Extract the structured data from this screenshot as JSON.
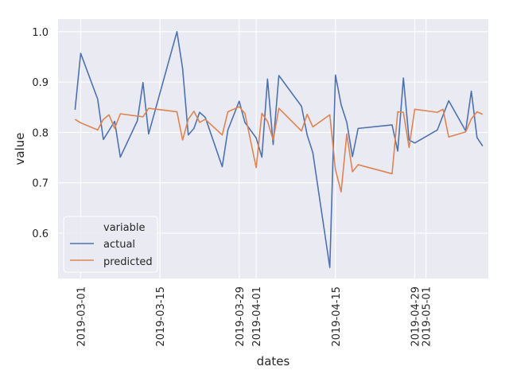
{
  "chart_data": {
    "type": "line",
    "xlabel": "dates",
    "ylabel": "value",
    "xlim": [
      "2019-02-25",
      "2019-05-12"
    ],
    "ylim": [
      0.51,
      1.025
    ],
    "grid": true,
    "x_ticks": [
      "2019-03-01",
      "2019-03-15",
      "2019-03-29",
      "2019-04-01",
      "2019-04-15",
      "2019-04-29",
      "2019-05-01"
    ],
    "y_ticks": [
      "0.6",
      "0.7",
      "0.8",
      "0.9",
      "1.0"
    ],
    "legend": {
      "title": "variable",
      "placement": "lower-left"
    },
    "series": [
      {
        "name": "actual",
        "color": "#4c72b0",
        "points": [
          [
            "2019-02-28",
            0.845
          ],
          [
            "2019-03-01",
            0.957
          ],
          [
            "2019-03-04",
            0.866
          ],
          [
            "2019-03-05",
            0.786
          ],
          [
            "2019-03-07",
            0.822
          ],
          [
            "2019-03-08",
            0.751
          ],
          [
            "2019-03-11",
            0.823
          ],
          [
            "2019-03-12",
            0.899
          ],
          [
            "2019-03-13",
            0.797
          ],
          [
            "2019-03-18",
            1.0
          ],
          [
            "2019-03-19",
            0.927
          ],
          [
            "2019-03-20",
            0.795
          ],
          [
            "2019-03-21",
            0.808
          ],
          [
            "2019-03-22",
            0.84
          ],
          [
            "2019-03-23",
            0.83
          ],
          [
            "2019-03-26",
            0.732
          ],
          [
            "2019-03-27",
            0.805
          ],
          [
            "2019-03-29",
            0.862
          ],
          [
            "2019-03-30",
            0.82
          ],
          [
            "2019-04-01",
            0.789
          ],
          [
            "2019-04-02",
            0.751
          ],
          [
            "2019-04-03",
            0.906
          ],
          [
            "2019-04-04",
            0.776
          ],
          [
            "2019-04-05",
            0.913
          ],
          [
            "2019-04-09",
            0.852
          ],
          [
            "2019-04-10",
            0.795
          ],
          [
            "2019-04-11",
            0.76
          ],
          [
            "2019-04-14",
            0.532
          ],
          [
            "2019-04-15",
            0.914
          ],
          [
            "2019-04-16",
            0.855
          ],
          [
            "2019-04-17",
            0.82
          ],
          [
            "2019-04-18",
            0.752
          ],
          [
            "2019-04-19",
            0.808
          ],
          [
            "2019-04-25",
            0.815
          ],
          [
            "2019-04-26",
            0.763
          ],
          [
            "2019-04-27",
            0.908
          ],
          [
            "2019-04-28",
            0.785
          ],
          [
            "2019-04-29",
            0.779
          ],
          [
            "2019-05-03",
            0.805
          ],
          [
            "2019-05-05",
            0.863
          ],
          [
            "2019-05-08",
            0.803
          ],
          [
            "2019-05-09",
            0.882
          ],
          [
            "2019-05-10",
            0.79
          ],
          [
            "2019-05-11",
            0.773
          ]
        ]
      },
      {
        "name": "predicted",
        "color": "#dd8452",
        "points": [
          [
            "2019-02-28",
            0.826
          ],
          [
            "2019-03-01",
            0.819
          ],
          [
            "2019-03-04",
            0.805
          ],
          [
            "2019-03-05",
            0.826
          ],
          [
            "2019-03-06",
            0.835
          ],
          [
            "2019-03-07",
            0.808
          ],
          [
            "2019-03-08",
            0.837
          ],
          [
            "2019-03-12",
            0.831
          ],
          [
            "2019-03-13",
            0.848
          ],
          [
            "2019-03-18",
            0.841
          ],
          [
            "2019-03-19",
            0.785
          ],
          [
            "2019-03-20",
            0.826
          ],
          [
            "2019-03-21",
            0.842
          ],
          [
            "2019-03-22",
            0.82
          ],
          [
            "2019-03-23",
            0.826
          ],
          [
            "2019-03-26",
            0.795
          ],
          [
            "2019-03-27",
            0.841
          ],
          [
            "2019-03-29",
            0.851
          ],
          [
            "2019-03-30",
            0.838
          ],
          [
            "2019-04-01",
            0.73
          ],
          [
            "2019-04-02",
            0.838
          ],
          [
            "2019-04-03",
            0.822
          ],
          [
            "2019-04-04",
            0.785
          ],
          [
            "2019-04-05",
            0.848
          ],
          [
            "2019-04-09",
            0.803
          ],
          [
            "2019-04-10",
            0.836
          ],
          [
            "2019-04-11",
            0.811
          ],
          [
            "2019-04-14",
            0.835
          ],
          [
            "2019-04-15",
            0.726
          ],
          [
            "2019-04-16",
            0.682
          ],
          [
            "2019-04-17",
            0.797
          ],
          [
            "2019-04-18",
            0.722
          ],
          [
            "2019-04-19",
            0.736
          ],
          [
            "2019-04-25",
            0.718
          ],
          [
            "2019-04-26",
            0.841
          ],
          [
            "2019-04-27",
            0.84
          ],
          [
            "2019-04-28",
            0.77
          ],
          [
            "2019-04-29",
            0.846
          ],
          [
            "2019-05-03",
            0.84
          ],
          [
            "2019-05-04",
            0.846
          ],
          [
            "2019-05-05",
            0.791
          ],
          [
            "2019-05-08",
            0.801
          ],
          [
            "2019-05-09",
            0.827
          ],
          [
            "2019-05-10",
            0.841
          ],
          [
            "2019-05-11",
            0.836
          ]
        ]
      }
    ]
  }
}
